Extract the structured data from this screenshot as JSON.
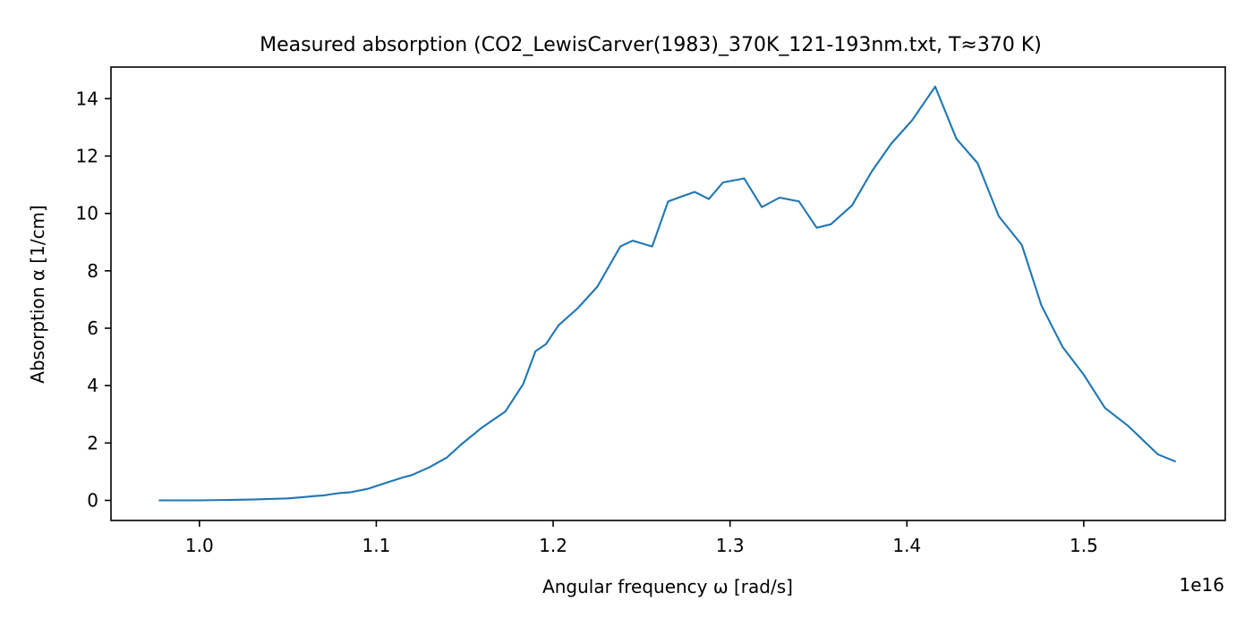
{
  "chart_data": {
    "type": "line",
    "title": "Measured absorption (CO2_LewisCarver(1983)_370K_121-193nm.txt, T≈370 K)",
    "xlabel": "Angular frequency ω [rad/s]",
    "ylabel": "Absorption α [1/cm]",
    "x_offset_text": "1e16",
    "xlim": [
      0.95,
      1.58
    ],
    "ylim": [
      -0.7,
      15.1
    ],
    "x_ticks": [
      1.0,
      1.1,
      1.2,
      1.3,
      1.4,
      1.5
    ],
    "x_tick_labels": [
      "1.0",
      "1.1",
      "1.2",
      "1.3",
      "1.4",
      "1.5"
    ],
    "y_ticks": [
      0,
      2,
      4,
      6,
      8,
      10,
      12,
      14
    ],
    "y_tick_labels": [
      "0",
      "2",
      "4",
      "6",
      "8",
      "10",
      "12",
      "14"
    ],
    "grid": false,
    "series": [
      {
        "color": "#1f77b4",
        "x": [
          0.977,
          1.0,
          1.03,
          1.05,
          1.06,
          1.065,
          1.07,
          1.075,
          1.08,
          1.085,
          1.095,
          1.105,
          1.115,
          1.12,
          1.13,
          1.14,
          1.148,
          1.16,
          1.173,
          1.183,
          1.19,
          1.196,
          1.203,
          1.214,
          1.225,
          1.238,
          1.245,
          1.256,
          1.265,
          1.28,
          1.288,
          1.296,
          1.308,
          1.318,
          1.328,
          1.339,
          1.349,
          1.357,
          1.369,
          1.38,
          1.391,
          1.403,
          1.416,
          1.428,
          1.44,
          1.452,
          1.465,
          1.476,
          1.488,
          1.5,
          1.512,
          1.525,
          1.542,
          1.552
        ],
        "y": [
          0.0,
          0.0,
          0.03,
          0.07,
          0.12,
          0.15,
          0.17,
          0.22,
          0.26,
          0.28,
          0.4,
          0.6,
          0.8,
          0.88,
          1.15,
          1.5,
          1.95,
          2.55,
          3.1,
          4.05,
          5.2,
          5.45,
          6.1,
          6.7,
          7.45,
          8.85,
          9.05,
          8.85,
          10.42,
          10.75,
          10.5,
          11.08,
          11.22,
          10.22,
          10.55,
          10.42,
          9.5,
          9.62,
          10.28,
          11.45,
          12.42,
          13.25,
          14.42,
          12.6,
          11.75,
          9.9,
          8.9,
          6.8,
          5.35,
          4.38,
          3.22,
          2.6,
          1.6,
          1.35
        ]
      }
    ]
  }
}
